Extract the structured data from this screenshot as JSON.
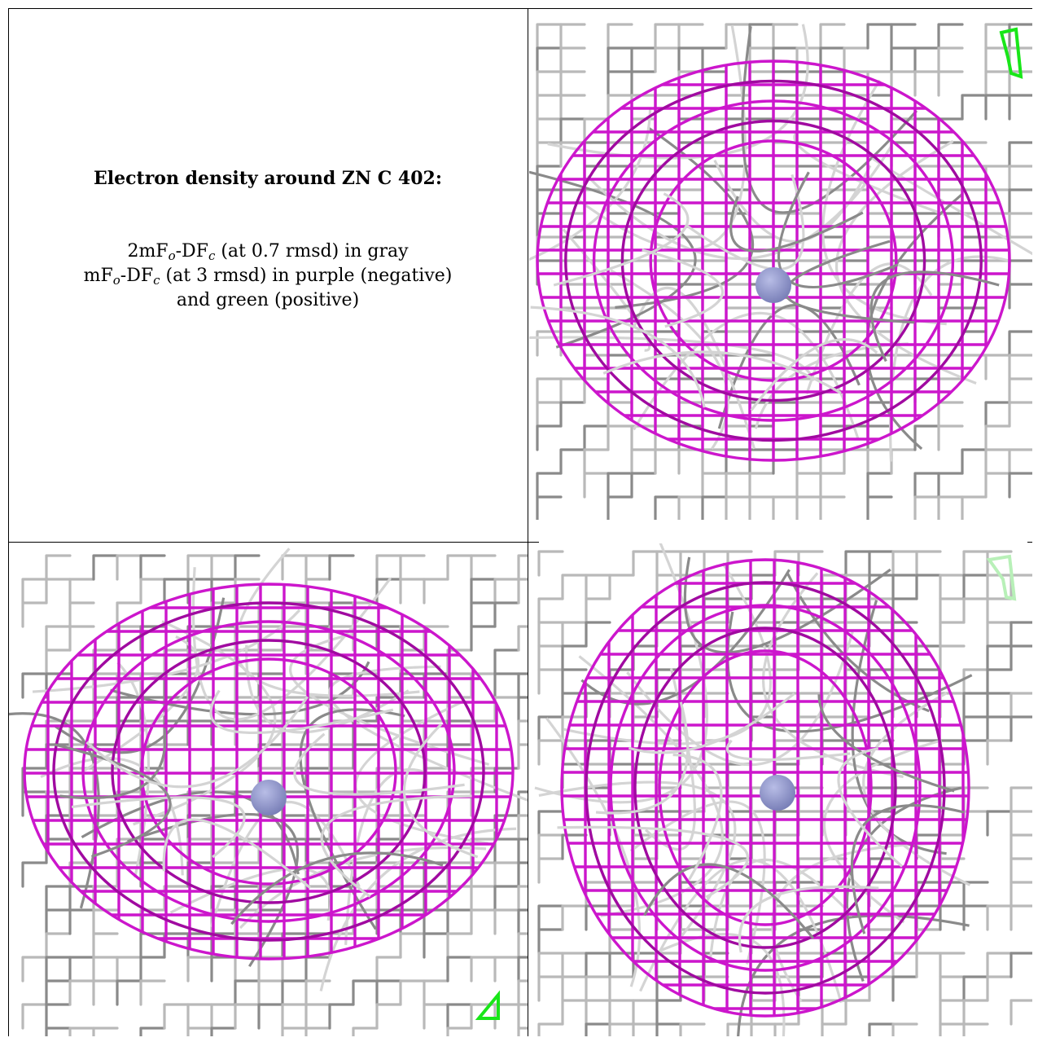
{
  "caption": {
    "title": "Electron density around ZN C 402:",
    "line1_pre": "2mF",
    "line1_sub1": "o",
    "line1_mid": "-DF",
    "line1_sub2": "c",
    "line1_post": " (at 0.7 rmsd) in gray",
    "line2_pre": "mF",
    "line2_sub1": "o",
    "line2_mid": "-DF",
    "line2_sub2": "c",
    "line2_post": " (at 3 rmsd) in purple (negative)",
    "line3": "and green (positive)"
  },
  "colors": {
    "gray_mesh": "#b9b9b9",
    "gray_mesh_dark": "#8a8a8a",
    "purple_mesh": "#cc16cc",
    "purple_mesh_dark": "#a00aa0",
    "green_mesh": "#19e619",
    "green_mesh_faint": "#b8f0b8",
    "atom": "#7a80b8"
  },
  "views": [
    {
      "name": "view-top-right",
      "green": "top-right"
    },
    {
      "name": "view-bottom-left",
      "green": "bottom-right"
    },
    {
      "name": "view-bottom-right",
      "green": "top-right-faint"
    }
  ]
}
